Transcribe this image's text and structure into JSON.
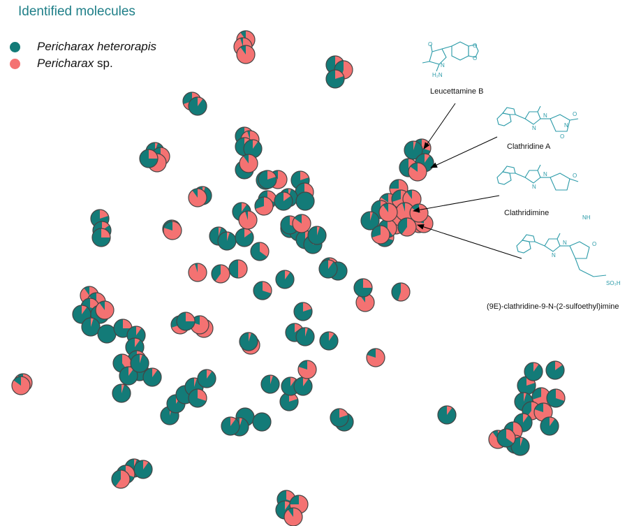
{
  "title": "Identified molecules",
  "legend": {
    "items": [
      {
        "species": "Pericharax heterorapis",
        "italic_part": "Pericharax heterorapis",
        "rest": "",
        "color": "#137b78"
      },
      {
        "species": "Pericharax sp.",
        "italic_part": "Pericharax",
        "rest": " sp.",
        "color": "#f47272"
      }
    ]
  },
  "colors": {
    "teal": "#137b78",
    "salmon": "#f47272",
    "node_stroke": "#444444",
    "title": "#1f7f88",
    "structure": "#2a9aa8"
  },
  "molecules": [
    {
      "name": "Leucettamine B"
    },
    {
      "name": "Clathridine A"
    },
    {
      "name": "Clathridimine"
    },
    {
      "name": "(9E)-clathridine-9-N-(2-sulfoethyl)imine"
    }
  ],
  "chart_data": {
    "type": "scatter",
    "title": "Identified molecules",
    "series": [
      {
        "name": "Pericharax heterorapis"
      },
      {
        "name": "Pericharax sp."
      }
    ],
    "nodes_note": "",
    "node_salmon_fraction": [
      0.9,
      0.95,
      0.9,
      0.15,
      0.55,
      0.2,
      0.7,
      0.1,
      0.05,
      0.7,
      0.8,
      0.6,
      0.95,
      0.4,
      0.1,
      0.15,
      0.05,
      0.9,
      0.2,
      0.6,
      0.05,
      0.3,
      0.15,
      0.0,
      0.1,
      0.05,
      0.2,
      0.15,
      0.25,
      0.1,
      0.05,
      0.05,
      0.35,
      0.1,
      0.05,
      0.1,
      0.2,
      0.05,
      0.3,
      0.0,
      0.9,
      0.85,
      0.3,
      0.1,
      0.15,
      0.05,
      0.0,
      0.25,
      0.1,
      0.1,
      0.2,
      0.4,
      0.0,
      0.1,
      0.1,
      0.05,
      0.9,
      0.85,
      0.05,
      0.1,
      0.0,
      0.05,
      0.1,
      0.3,
      0.0,
      0.05,
      0.1,
      0.0,
      0.05,
      0.2,
      0.1,
      0.1,
      0.9,
      0.8,
      0.7,
      0.25,
      0.95,
      0.6,
      0.5,
      0.3,
      0.1,
      0.2,
      0.15,
      0.05,
      0.1,
      0.9,
      0.05,
      0.8,
      0.55,
      0.9,
      0.3,
      0.05,
      0.4,
      0.1,
      0.75,
      0.85,
      0.7,
      0.2,
      0.05,
      0.5,
      0.3,
      0.8,
      0.4,
      0.9,
      0.2,
      0.1,
      0.15,
      0.7,
      0.05,
      0.6,
      0.8,
      0.3,
      0.1,
      0.6,
      0.9,
      0.2,
      0.1,
      0.05,
      0.35,
      0.1,
      0.05,
      0.2,
      0.8,
      0.3,
      0.1,
      0.75,
      0.9,
      0.05,
      0.3,
      0.1,
      0.6,
      0.25,
      0.9,
      0.8,
      0.85,
      0.95,
      0.7,
      0.85,
      0.6,
      0.9,
      0.3,
      0.7,
      0.9,
      0.2,
      0.15,
      0.95,
      0.85,
      0.9,
      0.05,
      0.9,
      0.1,
      0.8,
      0.25,
      0.05,
      0.3,
      0.9,
      0.85
    ]
  }
}
